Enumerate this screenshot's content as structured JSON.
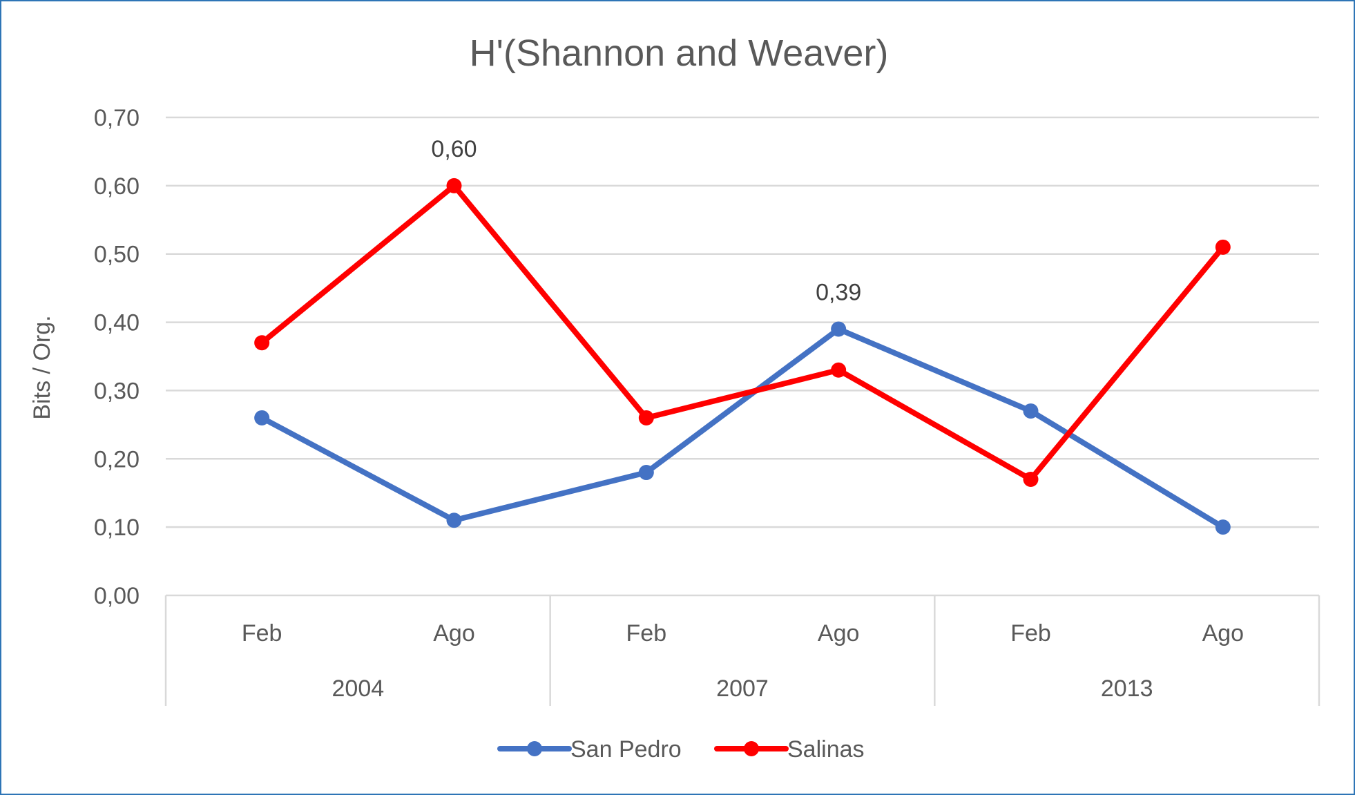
{
  "chart_data": {
    "type": "line",
    "title": "H'(Shannon and Weaver)",
    "ylabel": "Bits / Org.",
    "xlabel": "",
    "ylim": [
      0,
      0.7
    ],
    "ytick_values": [
      0,
      0.1,
      0.2,
      0.3,
      0.4,
      0.5,
      0.6,
      0.7
    ],
    "ytick_labels": [
      "0,00",
      "0,10",
      "0,20",
      "0,30",
      "0,40",
      "0,50",
      "0,60",
      "0,70"
    ],
    "categories": [
      "Feb",
      "Ago",
      "Feb",
      "Ago",
      "Feb",
      "Ago"
    ],
    "groups": [
      {
        "label": "2004",
        "span": 2
      },
      {
        "label": "2007",
        "span": 2
      },
      {
        "label": "2013",
        "span": 2
      }
    ],
    "series": [
      {
        "name": "San Pedro",
        "color": "#4472c4",
        "values": [
          0.26,
          0.11,
          0.18,
          0.39,
          0.27,
          0.1
        ]
      },
      {
        "name": "Salinas",
        "color": "#ff0000",
        "values": [
          0.37,
          0.6,
          0.26,
          0.33,
          0.17,
          0.51
        ]
      }
    ],
    "data_labels": [
      {
        "series": "Salinas",
        "index": 1,
        "text": "0,60"
      },
      {
        "series": "San Pedro",
        "index": 3,
        "text": "0,39"
      }
    ],
    "grid": true,
    "legend_position": "bottom"
  }
}
